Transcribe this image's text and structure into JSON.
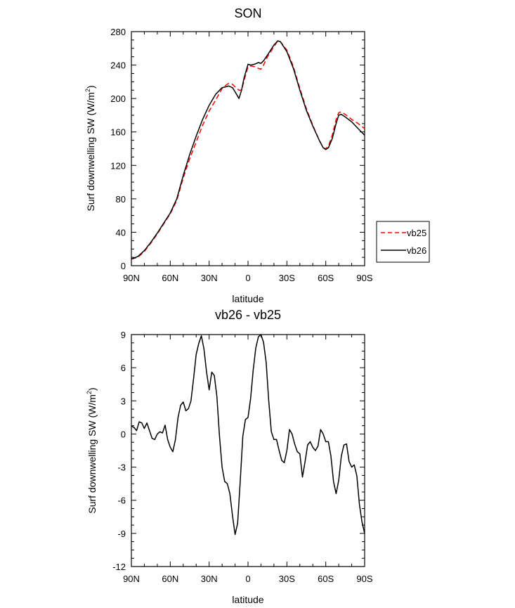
{
  "chart_data": [
    {
      "type": "line",
      "title": "SON",
      "xlabel": "latitude",
      "ylabel": "Surf downwelling SW (W/m²)",
      "ylabel_main": "Surf downwelling SW (W/m",
      "ylabel_sup": "2",
      "ylabel_end": ")",
      "xlim": [
        90,
        -90
      ],
      "ylim": [
        0,
        280
      ],
      "xticks": [
        90,
        60,
        30,
        0,
        -30,
        -60,
        -90
      ],
      "xtick_labels": [
        "90N",
        "60N",
        "30N",
        "0",
        "30S",
        "60S",
        "90S"
      ],
      "yticks": [
        0,
        40,
        80,
        120,
        160,
        200,
        240,
        280
      ],
      "ytick_labels": [
        "0",
        "40",
        "80",
        "120",
        "160",
        "200",
        "240",
        "280"
      ],
      "legend": "right",
      "series": [
        {
          "name": "vb25",
          "color": "#ff0000",
          "dash": "dashed",
          "x": [
            90,
            85,
            80,
            75,
            70,
            65,
            60,
            55,
            50,
            45,
            40,
            35,
            30,
            25,
            20,
            17,
            15,
            12,
            10,
            7,
            5,
            3,
            0,
            -2,
            -5,
            -8,
            -10,
            -12,
            -15,
            -20,
            -23,
            -25,
            -30,
            -35,
            -40,
            -45,
            -50,
            -55,
            -58,
            -60,
            -62,
            -65,
            -68,
            -70,
            -72,
            -75,
            -80,
            -85,
            -90
          ],
          "y": [
            8,
            10,
            17,
            27,
            38,
            50,
            62,
            78,
            105,
            128,
            148,
            168,
            185,
            198,
            212,
            216,
            218,
            217,
            214,
            210,
            210,
            222,
            238,
            239,
            238,
            236,
            235,
            240,
            250,
            262,
            269,
            268,
            258,
            238,
            212,
            188,
            168,
            150,
            141,
            140,
            143,
            156,
            175,
            183,
            184,
            181,
            175,
            170,
            164
          ]
        },
        {
          "name": "vb26",
          "color": "#000000",
          "dash": "solid",
          "x": [
            90,
            85,
            80,
            75,
            70,
            65,
            60,
            55,
            50,
            45,
            40,
            35,
            30,
            25,
            20,
            17,
            15,
            12,
            10,
            7,
            5,
            3,
            0,
            -2,
            -5,
            -8,
            -10,
            -12,
            -15,
            -20,
            -23,
            -25,
            -30,
            -35,
            -40,
            -45,
            -50,
            -55,
            -58,
            -60,
            -62,
            -65,
            -68,
            -70,
            -72,
            -75,
            -80,
            -85,
            -90
          ],
          "y": [
            8,
            11,
            18,
            28,
            39,
            51,
            63,
            80,
            108,
            133,
            155,
            175,
            192,
            205,
            213,
            214,
            215,
            213,
            208,
            200,
            210,
            225,
            241,
            240,
            241,
            243,
            242,
            245,
            252,
            264,
            269,
            268,
            256,
            236,
            210,
            186,
            167,
            150,
            141,
            139,
            141,
            152,
            170,
            180,
            181,
            178,
            172,
            164,
            156
          ]
        }
      ]
    },
    {
      "type": "line",
      "title": "vb26 - vb25",
      "xlabel": "latitude",
      "ylabel": "Surf downwelling SW (W/m²)",
      "ylabel_main": "Surf downwelling SW (W/m",
      "ylabel_sup": "2",
      "ylabel_end": ")",
      "xlim": [
        90,
        -90
      ],
      "ylim": [
        -12,
        9
      ],
      "xticks": [
        90,
        60,
        30,
        0,
        -30,
        -60,
        -90
      ],
      "xtick_labels": [
        "90N",
        "60N",
        "30N",
        "0",
        "30S",
        "60S",
        "90S"
      ],
      "yticks": [
        -12,
        -9,
        -6,
        -3,
        0,
        3,
        6,
        9
      ],
      "ytick_labels": [
        "-12",
        "-9",
        "-6",
        "-3",
        "0",
        "3",
        "6",
        "9"
      ],
      "series": [
        {
          "color": "#000000",
          "x": [
            90,
            88,
            86,
            84,
            82,
            80,
            78,
            76,
            74,
            72,
            70,
            68,
            66,
            64,
            62,
            60,
            58,
            56,
            54,
            52,
            50,
            48,
            46,
            44,
            42,
            40,
            38,
            36,
            34,
            32,
            30,
            28,
            26,
            24,
            22,
            20,
            18,
            16,
            14,
            12,
            10,
            8,
            6,
            4,
            2,
            0,
            -2,
            -4,
            -6,
            -8,
            -10,
            -12,
            -14,
            -16,
            -18,
            -20,
            -22,
            -24,
            -26,
            -28,
            -30,
            -32,
            -34,
            -36,
            -38,
            -40,
            -42,
            -44,
            -46,
            -48,
            -50,
            -52,
            -54,
            -56,
            -58,
            -60,
            -62,
            -64,
            -66,
            -68,
            -70,
            -72,
            -74,
            -76,
            -78,
            -80,
            -82,
            -84,
            -86,
            -88,
            -90
          ],
          "y": [
            0.7,
            0.6,
            0.3,
            1.1,
            1.0,
            0.5,
            1.0,
            0.3,
            -0.4,
            -0.5,
            0.0,
            0.2,
            0.1,
            0.8,
            -0.5,
            -1.2,
            -1.6,
            -0.5,
            1.5,
            2.6,
            2.9,
            2.1,
            2.3,
            3.0,
            5.0,
            7.2,
            8.2,
            8.9,
            7.7,
            5.6,
            4.0,
            5.6,
            5.3,
            3.4,
            -0.2,
            -3.0,
            -4.3,
            -4.5,
            -5.4,
            -7.4,
            -9.1,
            -8.1,
            -4.3,
            -0.2,
            1.3,
            1.5,
            3.2,
            5.8,
            7.8,
            8.8,
            9.0,
            8.3,
            6.5,
            3.0,
            0.2,
            -0.5,
            -0.5,
            -1.5,
            -2.4,
            -2.6,
            -1.5,
            0.4,
            0.0,
            -0.9,
            -1.6,
            -1.8,
            -3.9,
            -2.5,
            -1.0,
            -0.7,
            -1.2,
            -1.5,
            -1.1,
            0.4,
            0.0,
            -0.7,
            -0.7,
            -2.0,
            -4.3,
            -5.4,
            -4.2,
            -2.0,
            -1.0,
            -0.9,
            -2.5,
            -3.0,
            -2.8,
            -3.8,
            -6.4,
            -8.0,
            -9.0
          ]
        }
      ]
    }
  ]
}
